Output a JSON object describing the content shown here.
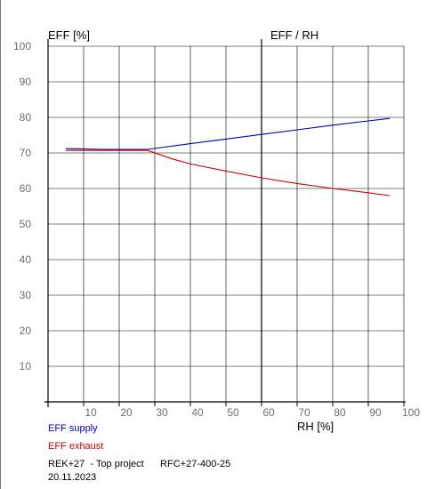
{
  "chart_data": {
    "type": "line",
    "ylabel": "EFF [%]",
    "title": "EFF / RH",
    "xlabel": "RH [%]",
    "xlim": [
      0,
      100
    ],
    "ylim": [
      0,
      100
    ],
    "x_ticks": [
      10,
      20,
      30,
      40,
      50,
      60,
      70,
      80,
      90,
      100
    ],
    "y_ticks": [
      10,
      20,
      30,
      40,
      50,
      60,
      70,
      80,
      90,
      100
    ],
    "grid": true,
    "series": [
      {
        "name": "EFF supply",
        "color": "#0000aa",
        "x": [
          5,
          10,
          15,
          20,
          28,
          40,
          50,
          60,
          70,
          80,
          90,
          96
        ],
        "y": [
          71.2,
          71.1,
          71.0,
          71.0,
          71.0,
          72.6,
          73.9,
          75.2,
          76.5,
          77.8,
          79.0,
          79.7
        ]
      },
      {
        "name": "EFF exhaust",
        "color": "#d00000",
        "x": [
          5,
          10,
          15,
          20,
          28,
          35,
          40,
          50,
          60,
          70,
          80,
          90,
          96
        ],
        "y": [
          70.7,
          70.7,
          70.7,
          70.7,
          70.7,
          68.3,
          66.9,
          64.9,
          63.0,
          61.4,
          60.0,
          58.8,
          58.0
        ]
      }
    ],
    "reference_line_x": 60
  },
  "legend": {
    "supply_label": "EFF supply",
    "exhaust_label": "EFF exhaust"
  },
  "footer": {
    "project_line": "REK+27  - Top project      RFC+27-400-25",
    "date": "20.11.2023"
  }
}
